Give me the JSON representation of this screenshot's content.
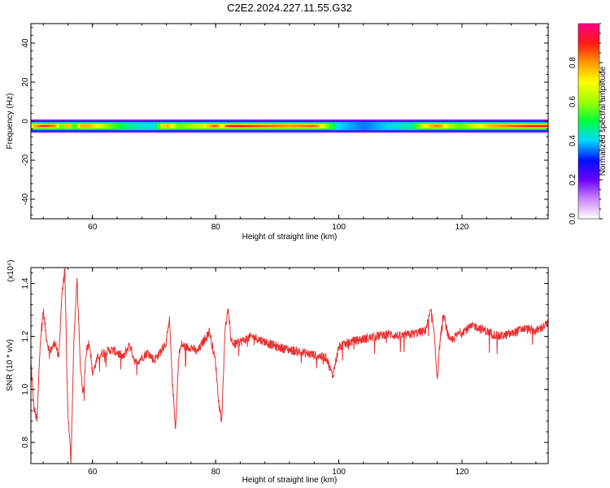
{
  "title": "C2E2.2024.227.11.55.G32",
  "colors": {
    "snr_line": "#e83030",
    "colormap": [
      "#ffffff",
      "#cc88ff",
      "#6a00ff",
      "#0010ff",
      "#00d8ff",
      "#00ff40",
      "#a0ff00",
      "#ffff00",
      "#ff9a00",
      "#ff1818",
      "#ff0088"
    ]
  },
  "chart_data": [
    {
      "type": "heatmap",
      "xlabel": "Height of straight line (km)",
      "ylabel": "Frequency (Hz)",
      "xlim": [
        50,
        134
      ],
      "ylim": [
        -50,
        50
      ],
      "xticks": [
        "60",
        "80",
        "100",
        "120"
      ],
      "yticks": [
        "40",
        "20",
        "0",
        "-20",
        "-40"
      ],
      "band_center_hz": -2.5,
      "band_halfwidth_hz": 3.5,
      "band_profile": {
        "x": [
          50,
          52,
          54,
          55,
          56,
          57,
          58,
          60,
          62,
          66,
          70,
          72,
          74,
          78,
          80,
          81,
          82,
          84,
          88,
          92,
          96,
          98,
          100,
          104,
          108,
          112,
          114,
          116,
          118,
          120,
          124,
          128,
          132,
          134
        ],
        "amplitude": [
          0.7,
          0.9,
          0.8,
          0.5,
          0.85,
          0.45,
          0.8,
          0.75,
          0.6,
          0.45,
          0.4,
          0.8,
          0.55,
          0.65,
          0.9,
          0.6,
          0.95,
          0.9,
          0.85,
          0.8,
          0.85,
          0.6,
          0.4,
          0.35,
          0.4,
          0.45,
          0.7,
          0.85,
          0.6,
          0.55,
          0.75,
          0.85,
          0.9,
          0.9
        ]
      },
      "colorbar": {
        "label": "Normalized spectral amplitude",
        "range": [
          0,
          1
        ],
        "ticks": [
          "0.0",
          "0.2",
          "0.4",
          "0.6",
          "0.8"
        ]
      }
    },
    {
      "type": "line",
      "xlabel": "Height of straight line (km)",
      "ylabel": "SNR (10 * v/v)",
      "exponent_label": "(x10⁴)",
      "xlim": [
        50,
        134
      ],
      "ylim": [
        0.72,
        1.46
      ],
      "xticks": [
        "60",
        "80",
        "100",
        "120"
      ],
      "yticks": [
        "0.8",
        "1.0",
        "1.2",
        "1.4"
      ],
      "series": [
        {
          "x": [
            50,
            50.5,
            51,
            51.5,
            52,
            52.5,
            53,
            53.5,
            54,
            54.5,
            55,
            55.5,
            56,
            56.5,
            57,
            57.5,
            58,
            58.5,
            59,
            59.5,
            60,
            61,
            62,
            63,
            64,
            65,
            66,
            67,
            68,
            69,
            70,
            71,
            72,
            72.5,
            73,
            73.5,
            74,
            74.5,
            75,
            76,
            77,
            78,
            79,
            80,
            80.5,
            81,
            81.5,
            82,
            82.5,
            83,
            84,
            85,
            86,
            88,
            90,
            92,
            94,
            96,
            98,
            99,
            100,
            102,
            104,
            106,
            108,
            110,
            112,
            114,
            115,
            115.5,
            116,
            116.5,
            117,
            118,
            120,
            122,
            124,
            126,
            128,
            130,
            132,
            134
          ],
          "y": [
            1.1,
            0.93,
            0.88,
            1.18,
            1.3,
            1.2,
            1.14,
            1.16,
            1.18,
            1.11,
            1.35,
            1.45,
            0.92,
            0.73,
            1.2,
            1.42,
            1.1,
            0.98,
            1.15,
            1.18,
            1.06,
            1.13,
            1.14,
            1.15,
            1.14,
            1.12,
            1.17,
            1.1,
            1.12,
            1.14,
            1.11,
            1.14,
            1.18,
            1.26,
            1.02,
            0.85,
            1.13,
            1.17,
            1.16,
            1.16,
            1.14,
            1.18,
            1.22,
            1.1,
            0.95,
            0.88,
            1.22,
            1.3,
            1.19,
            1.17,
            1.18,
            1.19,
            1.2,
            1.18,
            1.16,
            1.15,
            1.14,
            1.13,
            1.12,
            1.05,
            1.16,
            1.18,
            1.19,
            1.2,
            1.21,
            1.2,
            1.21,
            1.22,
            1.3,
            1.2,
            1.04,
            1.2,
            1.28,
            1.18,
            1.22,
            1.24,
            1.22,
            1.2,
            1.21,
            1.23,
            1.22,
            1.25
          ]
        }
      ]
    }
  ]
}
